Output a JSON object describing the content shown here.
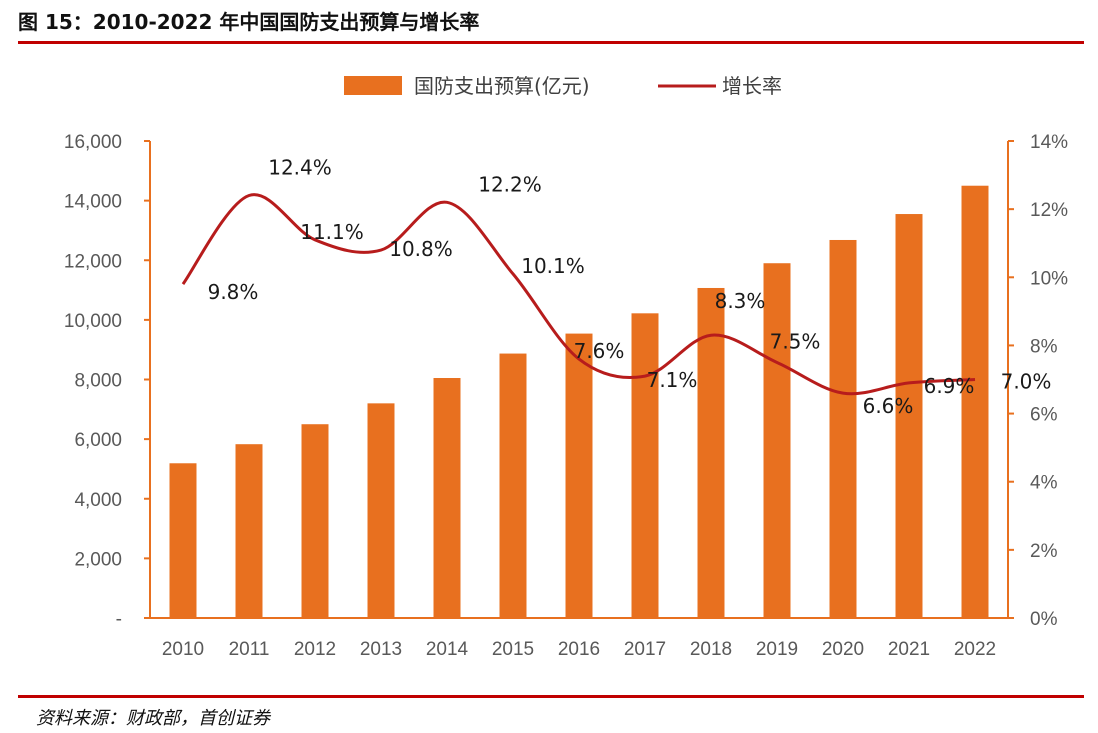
{
  "figure": {
    "title": "图 15：2010-2022 年中国国防支出预算与增长率",
    "source": "资料来源：财政部，首创证券"
  },
  "colors": {
    "bar": "#e8701f",
    "line": "#b71c1c",
    "rule": "#c00000",
    "right_axis": "#e8701f"
  },
  "chart_data": {
    "type": "bar",
    "categories": [
      "2010",
      "2011",
      "2012",
      "2013",
      "2014",
      "2015",
      "2016",
      "2017",
      "2018",
      "2019",
      "2020",
      "2021",
      "2022"
    ],
    "series": [
      {
        "name": "国防支出预算(亿元)",
        "type": "bar",
        "axis": "left",
        "values": [
          5190,
          5830,
          6500,
          7200,
          8050,
          8870,
          9540,
          10220,
          11070,
          11900,
          12680,
          13550,
          14500
        ]
      },
      {
        "name": "增长率",
        "type": "line",
        "axis": "right",
        "values": [
          9.8,
          12.4,
          11.1,
          10.8,
          12.2,
          10.1,
          7.6,
          7.1,
          8.3,
          7.5,
          6.6,
          6.9,
          7.0
        ],
        "labels": [
          "9.8%",
          "12.4%",
          "11.1%",
          "10.8%",
          "12.2%",
          "10.1%",
          "7.6%",
          "7.1%",
          "8.3%",
          "7.5%",
          "6.6%",
          "6.9%",
          "7.0%"
        ]
      }
    ],
    "ylim_left": [
      0,
      16000
    ],
    "yticks_left": [
      "-",
      "2,000",
      "4,000",
      "6,000",
      "8,000",
      "10,000",
      "12,000",
      "14,000",
      "16,000"
    ],
    "ylim_right": [
      0,
      14
    ],
    "yticks_right": [
      "0%",
      "2%",
      "4%",
      "6%",
      "8%",
      "10%",
      "12%",
      "14%"
    ],
    "legend": "top",
    "grid": false
  }
}
